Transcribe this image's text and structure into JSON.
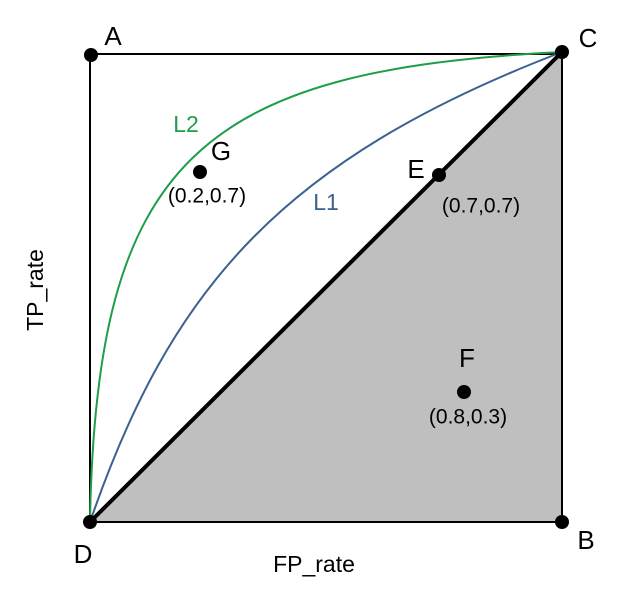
{
  "corners": [
    {
      "label": "A"
    },
    {
      "label": "B"
    },
    {
      "label": "C"
    },
    {
      "label": "D"
    }
  ],
  "points": [
    {
      "label": "G",
      "coords": "(0.2,0.7)"
    },
    {
      "label": "E",
      "coords": "(0.7,0.7)"
    },
    {
      "label": "F",
      "coords": "(0.8,0.3)"
    }
  ],
  "curves": [
    {
      "label": "L1"
    },
    {
      "label": "L2"
    }
  ],
  "axes": {
    "x": "FP_rate",
    "y": "TP_rate"
  }
}
